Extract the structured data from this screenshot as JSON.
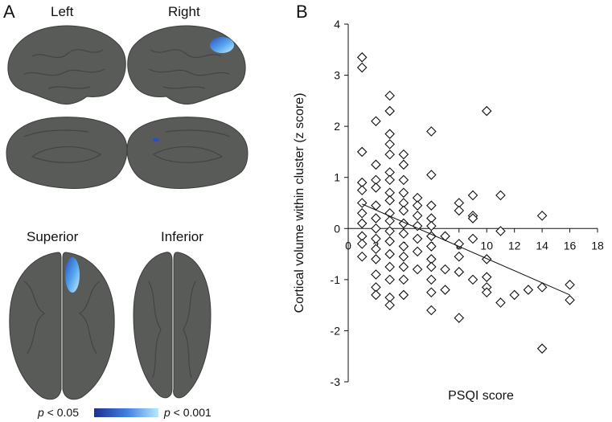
{
  "panel_a": {
    "letter": "A",
    "views": {
      "left": "Left",
      "right": "Right",
      "superior": "Superior",
      "inferior": "Inferior"
    },
    "legend": {
      "low_p": "p",
      "low_rest": " < 0.05",
      "high_p": "p",
      "high_rest": " < 0.001",
      "colors": [
        "#1f2f8f",
        "#3f7fe0",
        "#b8e8ff"
      ]
    },
    "brain_color": "#595b59",
    "cluster_colors": [
      "#2a4fc0",
      "#58a8f0",
      "#c6efff"
    ]
  },
  "panel_b": {
    "letter": "B"
  },
  "chart_data": {
    "type": "scatter",
    "xlabel": "PSQI score",
    "ylabel": "Cortical volume within cluster (z score)",
    "xlim": [
      0,
      18
    ],
    "ylim": [
      -3,
      4
    ],
    "xticks": [
      "0",
      "2",
      "4",
      "6",
      "8",
      "10",
      "12",
      "14",
      "16",
      "18"
    ],
    "yticks": [
      "-3",
      "-2",
      "-1",
      "0",
      "1",
      "2",
      "3",
      "4"
    ],
    "marker": "open-diamond",
    "trendline": {
      "x": [
        1,
        16
      ],
      "y": [
        0.48,
        -1.3
      ]
    },
    "points": [
      [
        1,
        3.35
      ],
      [
        1,
        3.15
      ],
      [
        1,
        1.5
      ],
      [
        1,
        0.9
      ],
      [
        1,
        0.75
      ],
      [
        1,
        0.5
      ],
      [
        1,
        0.3
      ],
      [
        1,
        0.1
      ],
      [
        1,
        -0.15
      ],
      [
        1,
        -0.3
      ],
      [
        1,
        -0.55
      ],
      [
        2,
        2.1
      ],
      [
        2,
        1.25
      ],
      [
        2,
        0.95
      ],
      [
        2,
        0.8
      ],
      [
        2,
        0.45
      ],
      [
        2,
        0.2
      ],
      [
        2,
        0.0
      ],
      [
        2,
        -0.2
      ],
      [
        2,
        -0.4
      ],
      [
        2,
        -0.6
      ],
      [
        2,
        -0.9
      ],
      [
        2,
        -1.15
      ],
      [
        2,
        -1.3
      ],
      [
        3,
        2.6
      ],
      [
        3,
        2.3
      ],
      [
        3,
        1.85
      ],
      [
        3,
        1.65
      ],
      [
        3,
        1.45
      ],
      [
        3,
        1.1
      ],
      [
        3,
        0.95
      ],
      [
        3,
        0.7
      ],
      [
        3,
        0.55
      ],
      [
        3,
        0.3
      ],
      [
        3,
        0.15
      ],
      [
        3,
        -0.05
      ],
      [
        3,
        -0.25
      ],
      [
        3,
        -0.5
      ],
      [
        3,
        -0.75
      ],
      [
        3,
        -1.0
      ],
      [
        3,
        -1.35
      ],
      [
        3,
        -1.5
      ],
      [
        4,
        1.45
      ],
      [
        4,
        1.25
      ],
      [
        4,
        0.95
      ],
      [
        4,
        0.7
      ],
      [
        4,
        0.5
      ],
      [
        4,
        0.35
      ],
      [
        4,
        0.1
      ],
      [
        4,
        -0.1
      ],
      [
        4,
        -0.35
      ],
      [
        4,
        -0.55
      ],
      [
        4,
        -0.75
      ],
      [
        4,
        -1.0
      ],
      [
        4,
        -1.3
      ],
      [
        5,
        0.6
      ],
      [
        5,
        0.45
      ],
      [
        5,
        0.25
      ],
      [
        5,
        0.05
      ],
      [
        5,
        -0.2
      ],
      [
        5,
        -0.45
      ],
      [
        5,
        -0.8
      ],
      [
        6,
        1.9
      ],
      [
        6,
        1.05
      ],
      [
        6,
        0.45
      ],
      [
        6,
        0.2
      ],
      [
        6,
        0.05
      ],
      [
        6,
        -0.15
      ],
      [
        6,
        -0.35
      ],
      [
        6,
        -0.6
      ],
      [
        6,
        -0.75
      ],
      [
        6,
        -1.0
      ],
      [
        6,
        -1.25
      ],
      [
        6,
        -1.6
      ],
      [
        7,
        -0.15
      ],
      [
        7,
        -0.8
      ],
      [
        7,
        -1.2
      ],
      [
        8,
        0.5
      ],
      [
        8,
        0.35
      ],
      [
        8,
        -0.3
      ],
      [
        8,
        -0.55
      ],
      [
        8,
        -0.85
      ],
      [
        8,
        -1.75
      ],
      [
        9,
        0.65
      ],
      [
        9,
        0.25
      ],
      [
        9,
        0.2
      ],
      [
        9,
        -0.2
      ],
      [
        9,
        -1.0
      ],
      [
        10,
        2.3
      ],
      [
        10,
        -0.6
      ],
      [
        10,
        -0.95
      ],
      [
        10,
        -1.15
      ],
      [
        10,
        -1.25
      ],
      [
        11,
        0.65
      ],
      [
        11,
        -0.05
      ],
      [
        11,
        -1.45
      ],
      [
        12,
        -1.3
      ],
      [
        13,
        -1.2
      ],
      [
        14,
        0.25
      ],
      [
        14,
        -1.15
      ],
      [
        14,
        -2.35
      ],
      [
        16,
        -1.1
      ],
      [
        16,
        -1.4
      ]
    ]
  }
}
